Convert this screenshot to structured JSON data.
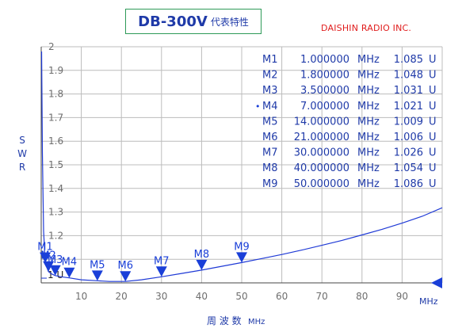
{
  "header": {
    "title": "DB-300V",
    "subtitle": "代表特性",
    "company": "DAISHIN RADIO INC."
  },
  "colors": {
    "curve": "#1f3ad6",
    "text": "#1f3aa8",
    "marker": "#1a3fd8",
    "grid": "#bcbcbc",
    "company": "#e01c1c",
    "title_border": "#2e9a58"
  },
  "markers_table": [
    {
      "name": "M1",
      "freq": "1.000000",
      "unit": "MHz",
      "swr": "1.085",
      "swr_unit": "U",
      "active": false
    },
    {
      "name": "M2",
      "freq": "1.800000",
      "unit": "MHz",
      "swr": "1.048",
      "swr_unit": "U",
      "active": false
    },
    {
      "name": "M3",
      "freq": "3.500000",
      "unit": "MHz",
      "swr": "1.031",
      "swr_unit": "U",
      "active": false
    },
    {
      "name": "M4",
      "freq": "7.000000",
      "unit": "MHz",
      "swr": "1.021",
      "swr_unit": "U",
      "active": true
    },
    {
      "name": "M5",
      "freq": "14.000000",
      "unit": "MHz",
      "swr": "1.009",
      "swr_unit": "U",
      "active": false
    },
    {
      "name": "M6",
      "freq": "21.000000",
      "unit": "MHz",
      "swr": "1.006",
      "swr_unit": "U",
      "active": false
    },
    {
      "name": "M7",
      "freq": "30.000000",
      "unit": "MHz",
      "swr": "1.026",
      "swr_unit": "U",
      "active": false
    },
    {
      "name": "M8",
      "freq": "40.000000",
      "unit": "MHz",
      "swr": "1.054",
      "swr_unit": "U",
      "active": false
    },
    {
      "name": "M9",
      "freq": "50.000000",
      "unit": "MHz",
      "swr": "1.086",
      "swr_unit": "U",
      "active": false
    }
  ],
  "reference_label": "1 U",
  "chart_data": {
    "type": "line",
    "xlabel": "周 波 数",
    "xlabel_unit": "MHz",
    "ylabel": "S W R",
    "xlim": [
      0,
      100
    ],
    "ylim": [
      1.0,
      2.0
    ],
    "x_ticks": [
      10,
      20,
      30,
      40,
      50,
      60,
      70,
      80,
      90
    ],
    "x_tick_unit": "MHz",
    "y_ticks": [
      1.2,
      1.3,
      1.4,
      1.5,
      1.6,
      1.7,
      1.8,
      1.9,
      2
    ],
    "grid": true,
    "series": [
      {
        "x": [
          0.1,
          0.3,
          0.6,
          1,
          1.8,
          2.6,
          3.5,
          5,
          7,
          10,
          14,
          17,
          21,
          25,
          30,
          35,
          40,
          45,
          50,
          55,
          60,
          65,
          70,
          75,
          80,
          85,
          90,
          95,
          100
        ],
        "y": [
          1.98,
          1.55,
          1.22,
          1.085,
          1.048,
          1.038,
          1.031,
          1.026,
          1.021,
          1.013,
          1.009,
          1.006,
          1.006,
          1.013,
          1.026,
          1.04,
          1.054,
          1.07,
          1.086,
          1.103,
          1.12,
          1.139,
          1.159,
          1.18,
          1.203,
          1.227,
          1.253,
          1.282,
          1.318
        ]
      }
    ],
    "markers": [
      {
        "name": "M1",
        "x": 1,
        "y": 1.085
      },
      {
        "name": "M2",
        "x": 1.8,
        "y": 1.048
      },
      {
        "name": "M3",
        "x": 3.5,
        "y": 1.031
      },
      {
        "name": "M4",
        "x": 7,
        "y": 1.021
      },
      {
        "name": "M5",
        "x": 14,
        "y": 1.009
      },
      {
        "name": "M6",
        "x": 21,
        "y": 1.006
      },
      {
        "name": "M7",
        "x": 30,
        "y": 1.026
      },
      {
        "name": "M8",
        "x": 40,
        "y": 1.054
      },
      {
        "name": "M9",
        "x": 50,
        "y": 1.086
      }
    ]
  }
}
